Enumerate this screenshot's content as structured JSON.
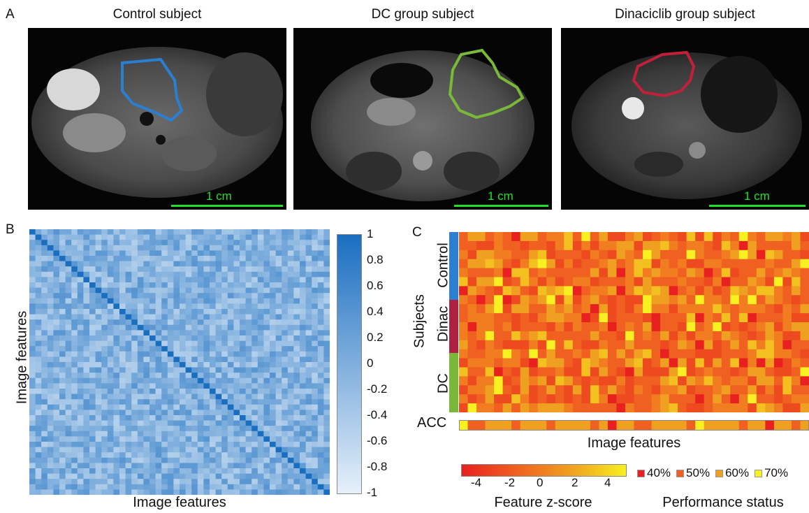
{
  "panels": {
    "a": {
      "label": "A",
      "images": [
        {
          "title": "Control subject",
          "scale": "1 cm",
          "contour_color": "#2b7fd0"
        },
        {
          "title": "DC group subject",
          "scale": "1 cm",
          "contour_color": "#7ab83a"
        },
        {
          "title": "Dinaciclib group subject",
          "scale": "1 cm",
          "contour_color": "#c0203a"
        }
      ]
    },
    "b": {
      "label": "B",
      "xlabel": "Image features",
      "ylabel": "Image features",
      "colorbar_ticks": [
        "1",
        "0.8",
        "0.6",
        "0.4",
        "0.2",
        "0",
        "-0.2",
        "-0.4",
        "-0.6",
        "-0.8",
        "-1"
      ]
    },
    "c": {
      "label": "C",
      "ylabel": "Subjects",
      "groups": [
        {
          "name": "Control",
          "color": "#2b7fd0"
        },
        {
          "name": "Dinac",
          "color": "#b02040"
        },
        {
          "name": "DC",
          "color": "#7ab83a"
        }
      ],
      "acc_label": "ACC",
      "xlabel": "Image features",
      "zscore_ticks": [
        "-4",
        "-2",
        "0",
        "2",
        "4"
      ],
      "zscore_title": "Feature z-score",
      "performance_title": "Performance status",
      "performance_legend": [
        {
          "label": "40%",
          "color": "#e82020"
        },
        {
          "label": "50%",
          "color": "#f06020"
        },
        {
          "label": "60%",
          "color": "#f0a020"
        },
        {
          "label": "70%",
          "color": "#f8f020"
        }
      ]
    }
  },
  "colors": {
    "scale_bar": "#22e02a",
    "correlation_dark": "#1a6ec0",
    "correlation_light": "#e6f0fa"
  }
}
